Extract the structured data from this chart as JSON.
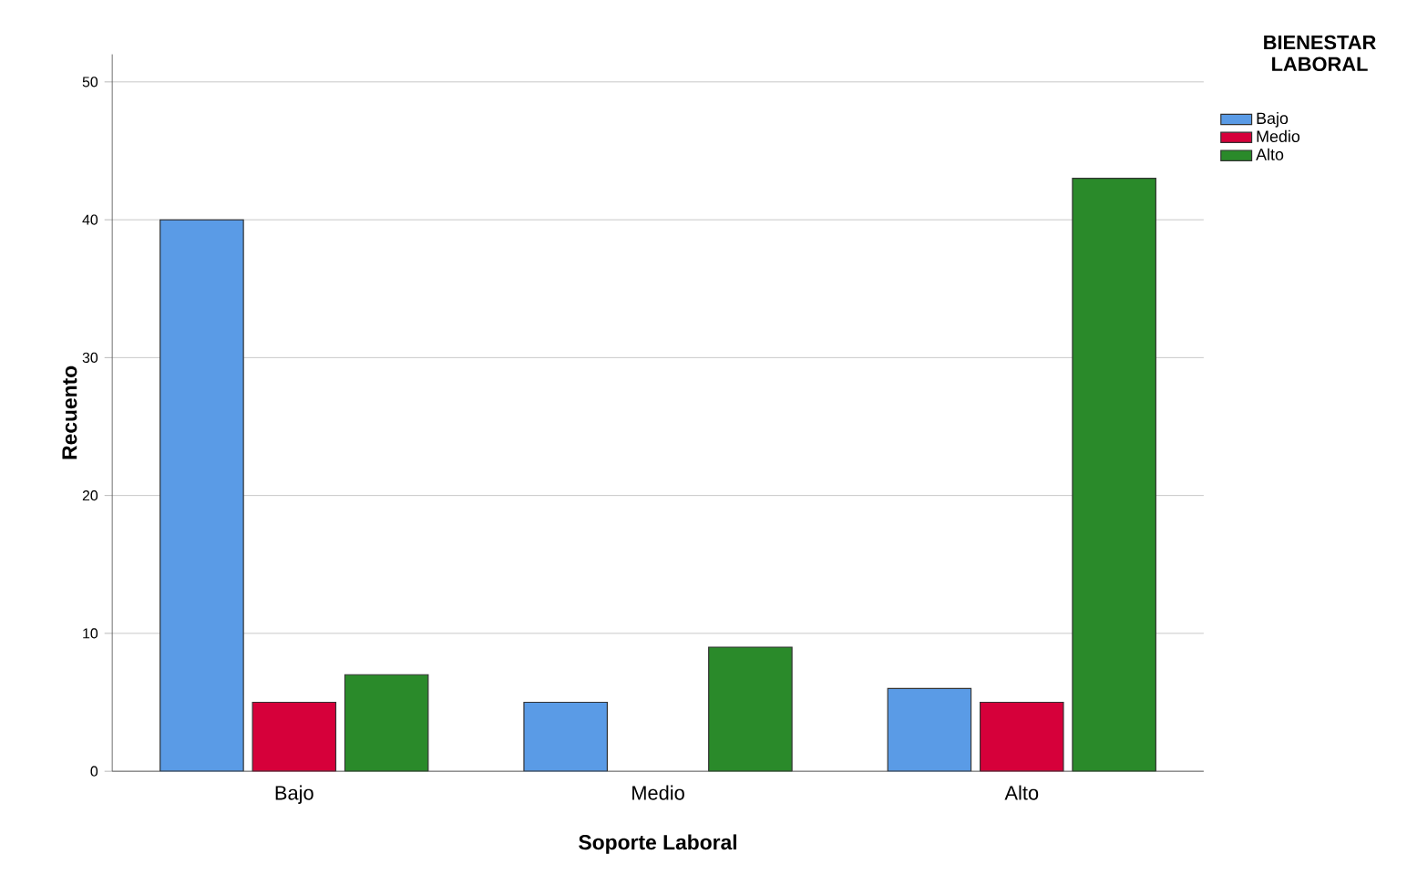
{
  "chart_data": {
    "type": "bar",
    "xlabel": "Soporte Laboral",
    "ylabel": "Recuento",
    "legend_title": "BIENESTAR LABORAL",
    "categories": [
      "Bajo",
      "Medio",
      "Alto"
    ],
    "series": [
      {
        "name": "Bajo",
        "color": "#5a9be6",
        "values": [
          40,
          5,
          6
        ]
      },
      {
        "name": "Medio",
        "color": "#d6003a",
        "values": [
          5,
          null,
          5
        ]
      },
      {
        "name": "Alto",
        "color": "#2a8a2a",
        "values": [
          7,
          9,
          43
        ]
      }
    ],
    "ylim": [
      0,
      52
    ],
    "yticks": [
      0,
      10,
      20,
      30,
      40,
      50
    ],
    "grid": "y",
    "legend": "top right"
  }
}
